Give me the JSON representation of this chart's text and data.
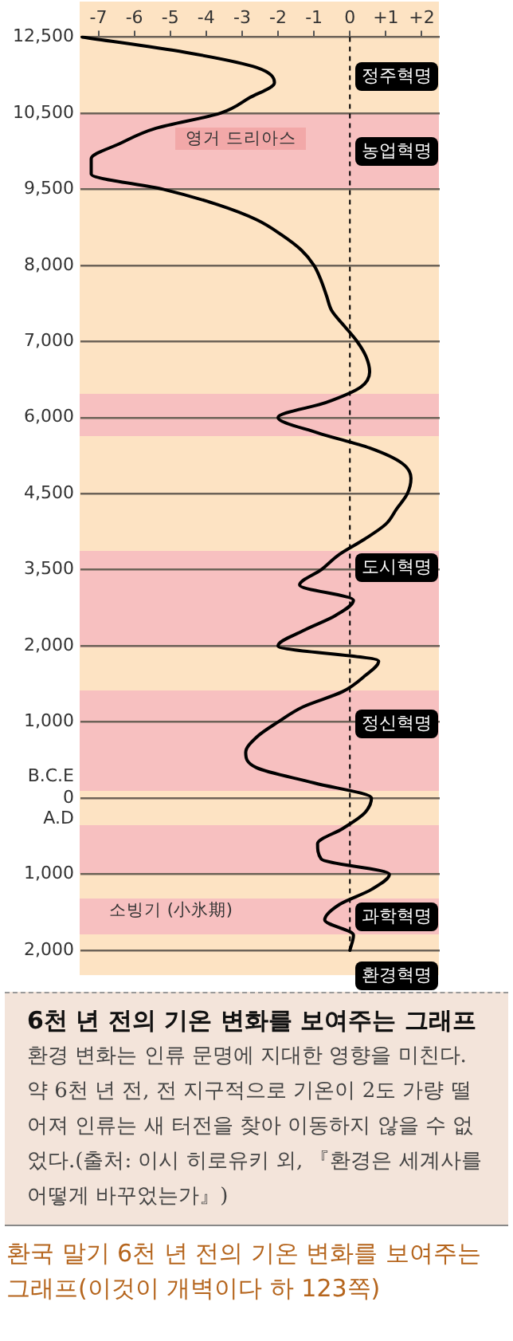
{
  "chart_data": {
    "type": "line",
    "orientation": "horizontal",
    "title": "6천 년 전의 기온 변화를 보여주는 그래프",
    "categories": [
      "12,500",
      null,
      null,
      null,
      null,
      "10,500",
      null,
      null,
      null,
      null,
      "9,500",
      null,
      null,
      null,
      null,
      "8,000",
      null,
      null,
      null,
      null,
      "7,000",
      null,
      null,
      null,
      null,
      "6,000",
      null,
      null,
      null,
      null,
      "4,500",
      null,
      null,
      null,
      null,
      "3,500",
      null,
      null,
      null,
      null,
      "2,000",
      null,
      null,
      null,
      null,
      "1,000",
      null,
      null,
      null,
      null,
      "B.C.E\n0\nA.D",
      null,
      null,
      null,
      null,
      "1,000",
      null,
      null,
      null,
      null,
      "2,000"
    ],
    "xlim": [
      -7.5,
      2.5
    ],
    "xticks": [
      -7,
      -6,
      -5,
      -4,
      -3,
      -2,
      -1,
      0,
      {
        "value": 1,
        "label": "+1"
      },
      {
        "value": 2,
        "label": "+2"
      }
    ],
    "grid": "y",
    "marker": "none",
    "series": [
      {
        "color": "#000000",
        "values": [
          -7.45,
          -4.6,
          -2.6,
          -2.1,
          -2.8,
          -3.6,
          -5.4,
          -6.4,
          -7.2,
          -7.2,
          -5.2,
          -3.7,
          -2.6,
          -1.9,
          -1.35,
          -1.0,
          -0.8,
          -0.65,
          -0.5,
          -0.15,
          0.2,
          0.45,
          0.55,
          0.3,
          -0.65,
          -2.0,
          -0.9,
          0.55,
          1.45,
          1.7,
          1.6,
          1.3,
          1.0,
          0.4,
          -0.3,
          -0.8,
          -1.4,
          0.1,
          -0.4,
          -1.3,
          -2.0,
          0.8,
          0.4,
          -0.2,
          -1.3,
          -2.0,
          -2.6,
          -2.9,
          -2.6,
          -1.0,
          0.6,
          0.4,
          -0.2,
          -0.9,
          -0.8,
          1.1,
          0.6,
          -0.3,
          -0.7,
          0.1,
          0.0
        ]
      }
    ],
    "ref_lines": [
      {
        "axis": "x",
        "value": 0,
        "color": "#000000",
        "line_style": "dashed"
      }
    ],
    "annotations": [
      "영거 드리아스",
      "소빙기 (小氷期)",
      "정주혁명",
      "농업혁명",
      "도시혁명",
      "정신혁명",
      "과학혁명",
      "환경혁명",
      "환경 변화는 인류 문명에 지대한 영향을 미친다. 약 6천 년 전, 전 지구적으로 기온이 2도 가량 떨어져 인류는 새 터전을 찾아 이동하지 않을 수 없었다.(출처: 이시 히로유키 외, 『환경은 세계사를 어떻게 바꾸었는가』)",
      "환국 말기 6천 년 전의 기온 변화를 보여주는 그래프(이것이 개벽이다 하 123쪽)"
    ]
  }
}
